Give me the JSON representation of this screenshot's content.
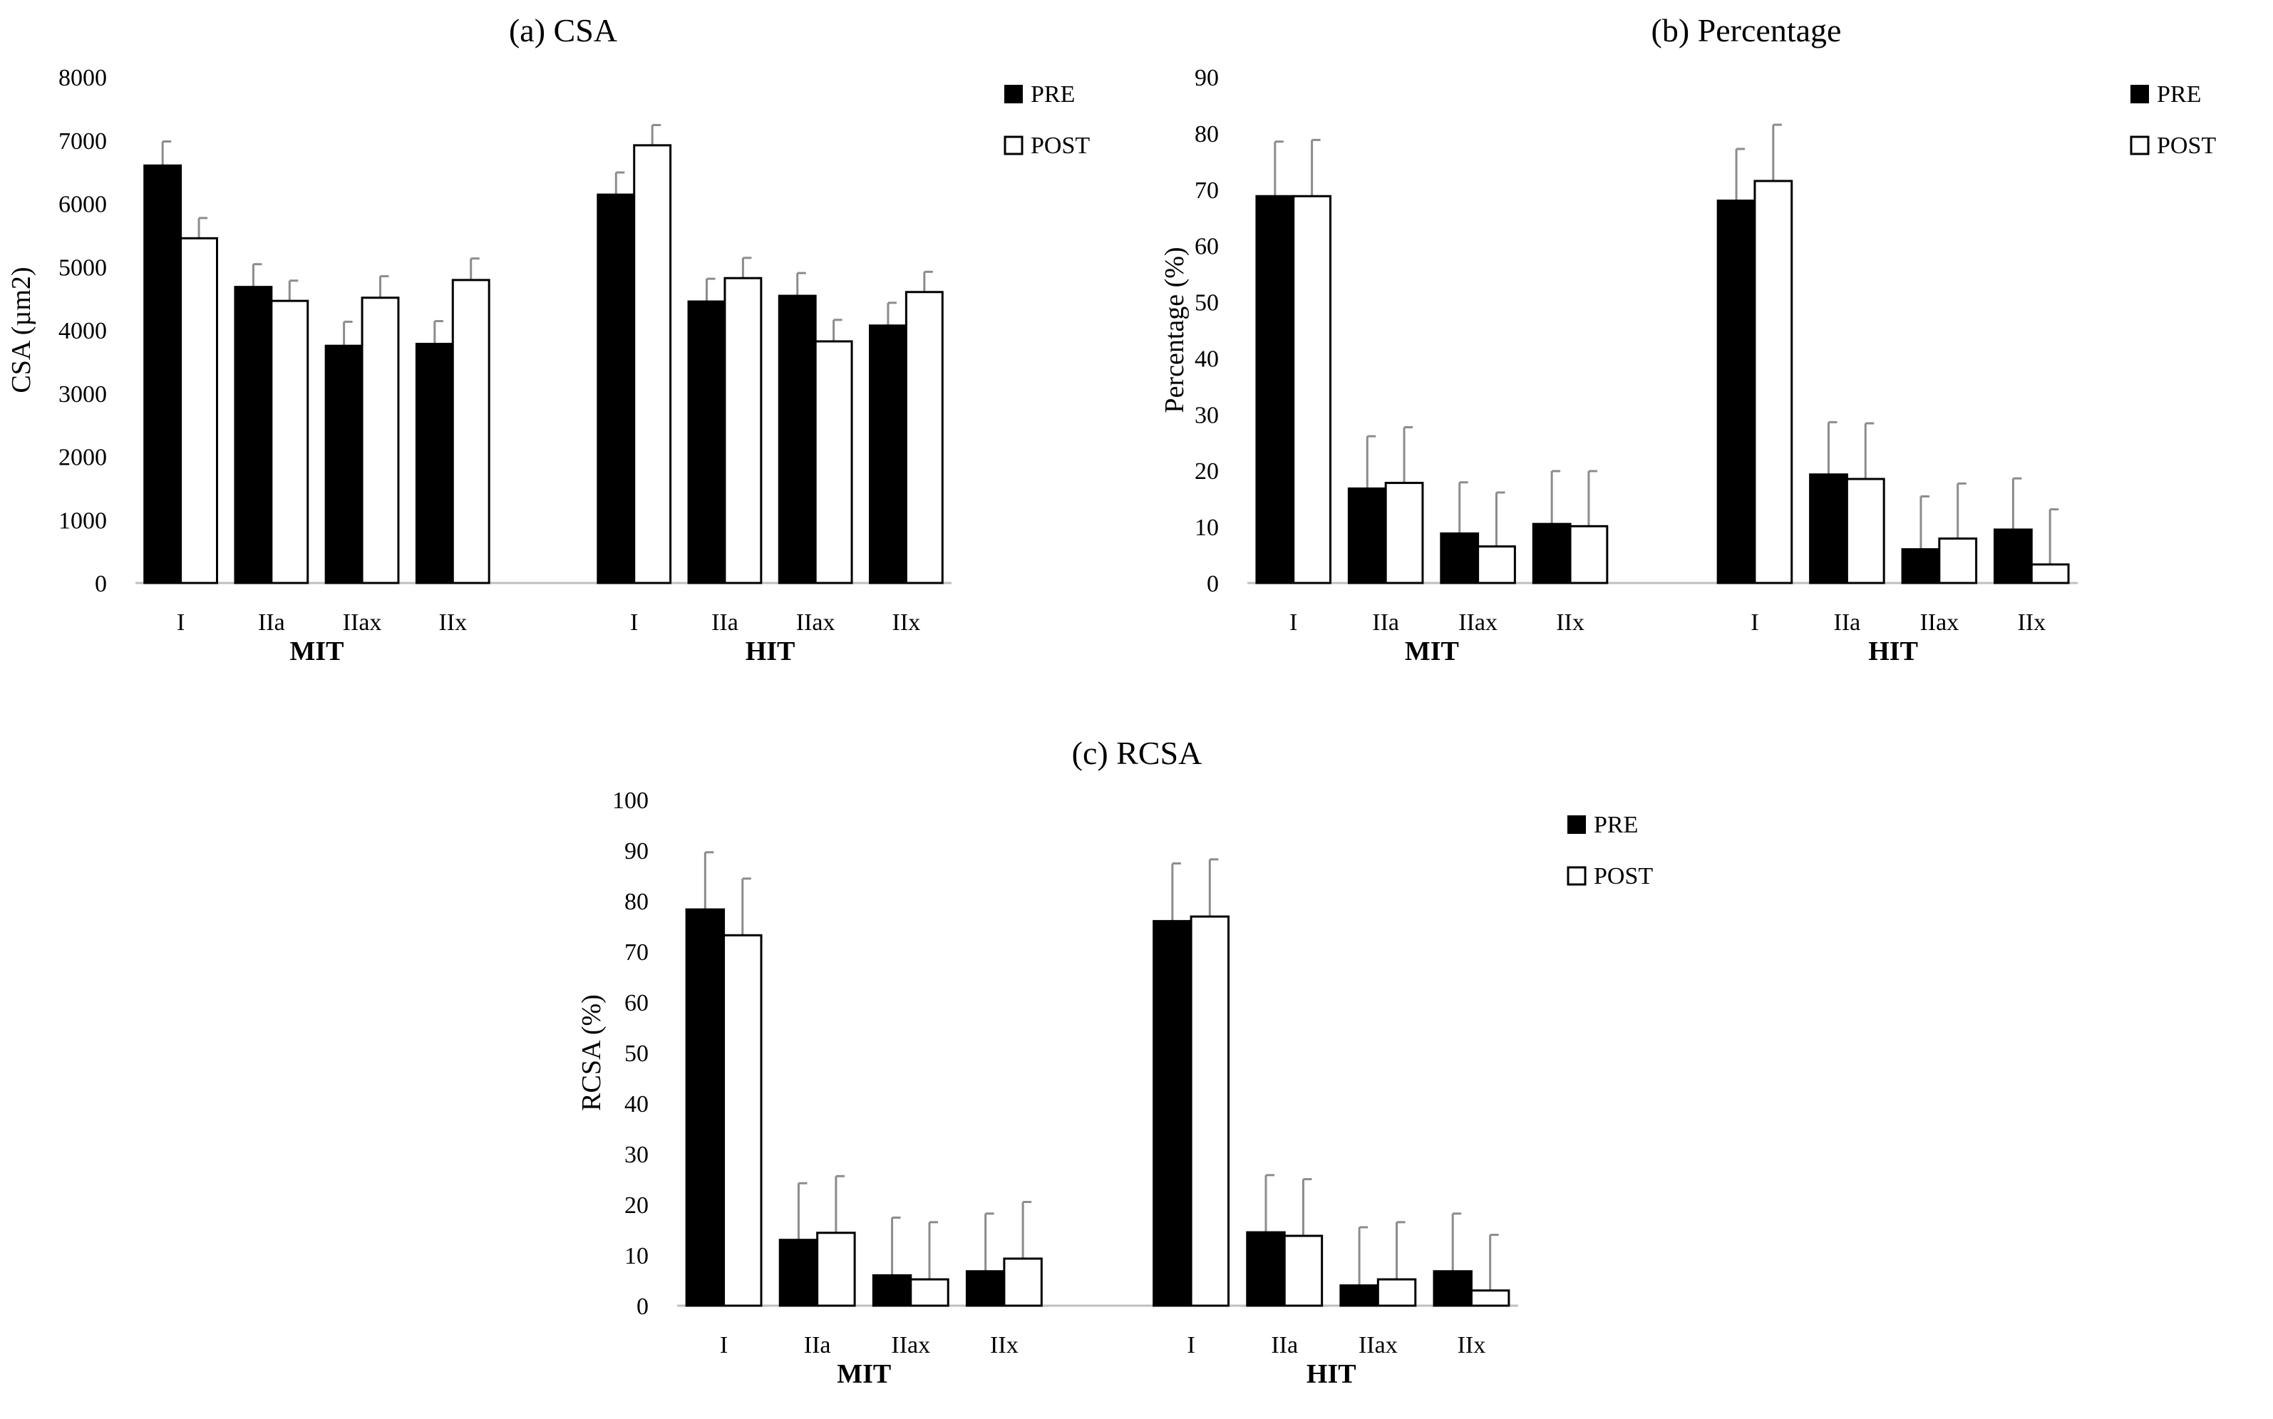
{
  "chart_data": [
    {
      "id": "a",
      "type": "bar",
      "title": "(a) CSA",
      "ylabel": "CSA (µm2)",
      "ylim": [
        0,
        8000
      ],
      "yticks": [
        0,
        1000,
        2000,
        3000,
        4000,
        5000,
        6000,
        7000,
        8000
      ],
      "legend": [
        "PRE",
        "POST"
      ],
      "groups": [
        {
          "name": "MIT",
          "categories": [
            "I",
            "IIa",
            "IIax",
            "IIx"
          ],
          "pre": [
            6600,
            4680,
            3750,
            3780
          ],
          "pre_err": [
            380,
            360,
            380,
            360
          ],
          "post": [
            5450,
            4460,
            4510,
            4790
          ],
          "post_err": [
            320,
            320,
            340,
            340
          ]
        },
        {
          "name": "HIT",
          "categories": [
            "I",
            "IIa",
            "IIax",
            "IIx"
          ],
          "pre": [
            6140,
            4450,
            4540,
            4070
          ],
          "pre_err": [
            350,
            360,
            360,
            360
          ],
          "post": [
            6920,
            4820,
            3820,
            4600
          ],
          "post_err": [
            320,
            320,
            340,
            320
          ]
        }
      ]
    },
    {
      "id": "b",
      "type": "bar",
      "title": "(b) Percentage",
      "ylabel": "Percentage (%)",
      "ylim": [
        0,
        90
      ],
      "yticks": [
        0,
        10,
        20,
        30,
        40,
        50,
        60,
        70,
        80,
        90
      ],
      "legend": [
        "PRE",
        "POST"
      ],
      "groups": [
        {
          "name": "MIT",
          "categories": [
            "I",
            "IIa",
            "IIax",
            "IIx"
          ],
          "pre": [
            68.8,
            16.8,
            8.8,
            10.5
          ],
          "pre_err": [
            9.7,
            9.3,
            9.1,
            9.4
          ],
          "post": [
            68.8,
            17.8,
            6.5,
            10.1
          ],
          "post_err": [
            10.0,
            9.9,
            9.6,
            9.8
          ]
        },
        {
          "name": "HIT",
          "categories": [
            "I",
            "IIa",
            "IIax",
            "IIx"
          ],
          "pre": [
            68.0,
            19.3,
            6.0,
            9.5
          ],
          "pre_err": [
            9.2,
            9.3,
            9.4,
            9.1
          ],
          "post": [
            71.5,
            18.5,
            7.9,
            3.3
          ],
          "post_err": [
            10.0,
            9.9,
            9.8,
            9.8
          ]
        }
      ]
    },
    {
      "id": "c",
      "type": "bar",
      "title": "(c) RCSA",
      "ylabel": "RCSA (%)",
      "ylim": [
        0,
        100
      ],
      "yticks": [
        0,
        10,
        20,
        30,
        40,
        50,
        60,
        70,
        80,
        90,
        100
      ],
      "legend": [
        "PRE",
        "POST"
      ],
      "groups": [
        {
          "name": "MIT",
          "categories": [
            "I",
            "IIa",
            "IIax",
            "IIx"
          ],
          "pre": [
            78.3,
            13.0,
            6.0,
            6.8
          ],
          "pre_err": [
            11.3,
            11.2,
            11.4,
            11.4
          ],
          "post": [
            73.2,
            14.4,
            5.2,
            9.3
          ],
          "post_err": [
            11.2,
            11.2,
            11.3,
            11.2
          ]
        },
        {
          "name": "HIT",
          "categories": [
            "I",
            "IIa",
            "IIax",
            "IIx"
          ],
          "pre": [
            76.0,
            14.5,
            4.0,
            6.8
          ],
          "pre_err": [
            11.4,
            11.3,
            11.5,
            11.4
          ],
          "post": [
            76.9,
            13.8,
            5.2,
            3.0
          ],
          "post_err": [
            11.3,
            11.2,
            11.3,
            11.0
          ]
        }
      ]
    }
  ]
}
